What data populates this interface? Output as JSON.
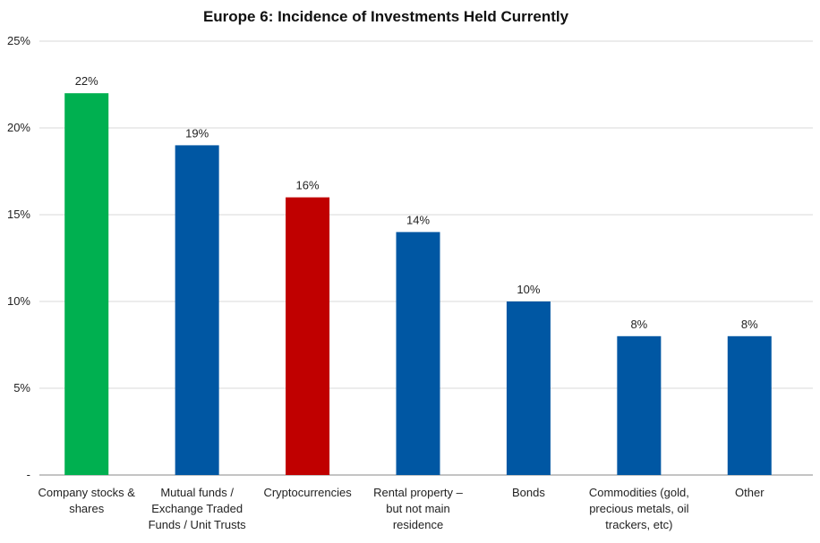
{
  "chart_data": {
    "type": "bar",
    "title": "Europe 6: Incidence of Investments Held Currently",
    "xlabel": "",
    "ylabel": "",
    "ylim": [
      0,
      25
    ],
    "yticks": [
      0,
      5,
      10,
      15,
      20,
      25
    ],
    "ytick_labels": [
      "-",
      "5%",
      "10%",
      "15%",
      "20%",
      "25%"
    ],
    "grid": true,
    "categories": [
      [
        "Company stocks &",
        "shares"
      ],
      [
        "Mutual funds /",
        "Exchange Traded",
        "Funds / Unit Trusts"
      ],
      [
        "Cryptocurrencies"
      ],
      [
        "Rental property –",
        "but not main",
        "residence"
      ],
      [
        "Bonds"
      ],
      [
        "Commodities (gold,",
        "precious metals, oil",
        "trackers, etc)"
      ],
      [
        "Other"
      ]
    ],
    "values": [
      22,
      19,
      16,
      14,
      10,
      8,
      8
    ],
    "value_labels": [
      "22%",
      "19%",
      "16%",
      "14%",
      "10%",
      "8%",
      "8%"
    ],
    "bar_colors": [
      "#00b050",
      "#0057a3",
      "#c00000",
      "#0057a3",
      "#0057a3",
      "#0057a3",
      "#0057a3"
    ]
  }
}
